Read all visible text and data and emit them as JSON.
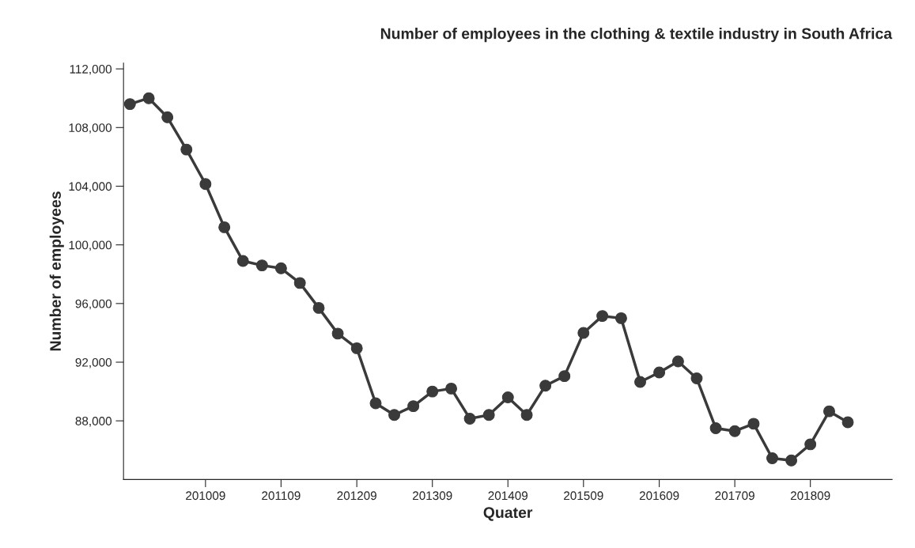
{
  "chart_data": {
    "type": "line",
    "title": "Number of employees in the clothing & textile industry in South Africa",
    "xlabel": "Quater",
    "ylabel": "Number of employees",
    "x": [
      "2009-09",
      "2009-12",
      "2010-03",
      "2010-06",
      "2010-09",
      "2010-12",
      "2011-03",
      "2011-06",
      "2011-09",
      "2011-12",
      "2012-03",
      "2012-06",
      "2012-09",
      "2012-12",
      "2013-03",
      "2013-06",
      "2013-09",
      "2013-12",
      "2014-03",
      "2014-06",
      "2014-09",
      "2014-12",
      "2015-03",
      "2015-06",
      "2015-09",
      "2015-12",
      "2016-03",
      "2016-06",
      "2016-09",
      "2016-12",
      "2017-03",
      "2017-06",
      "2017-09",
      "2017-12",
      "2018-03",
      "2018-06",
      "2018-09",
      "2018-12",
      "2019-03"
    ],
    "series": [
      {
        "color": "#3a3a3a",
        "values": [
          109600,
          110000,
          108700,
          106500,
          104150,
          101200,
          98900,
          98600,
          98400,
          97400,
          95700,
          93950,
          92950,
          89200,
          88400,
          89000,
          90000,
          90200,
          88150,
          88400,
          89600,
          88400,
          90400,
          91050,
          94000,
          95150,
          95000,
          90650,
          91300,
          92050,
          90900,
          87500,
          87300,
          87800,
          85450,
          85300,
          86400,
          88650,
          87900
        ]
      }
    ],
    "xlim": [
      "2009-08",
      "2019-10"
    ],
    "ylim": [
      84000,
      112400
    ],
    "xticks": [
      {
        "value": "2010-09",
        "label": "201009"
      },
      {
        "value": "2011-09",
        "label": "201109"
      },
      {
        "value": "2012-09",
        "label": "201209"
      },
      {
        "value": "2013-09",
        "label": "201309"
      },
      {
        "value": "2014-09",
        "label": "201409"
      },
      {
        "value": "2015-09",
        "label": "201509"
      },
      {
        "value": "2016-09",
        "label": "201609"
      },
      {
        "value": "2017-09",
        "label": "201709"
      },
      {
        "value": "2018-09",
        "label": "201809"
      }
    ],
    "yticks": [
      {
        "value": 88000,
        "label": "88,000"
      },
      {
        "value": 92000,
        "label": "92,000"
      },
      {
        "value": 96000,
        "label": "96,000"
      },
      {
        "value": 100000,
        "label": "100,000"
      },
      {
        "value": 104000,
        "label": "104,000"
      },
      {
        "value": 108000,
        "label": "108,000"
      },
      {
        "value": 112000,
        "label": "112,000"
      }
    ],
    "grid": false,
    "legend": false,
    "marker": "circle",
    "line_style": "solid"
  }
}
